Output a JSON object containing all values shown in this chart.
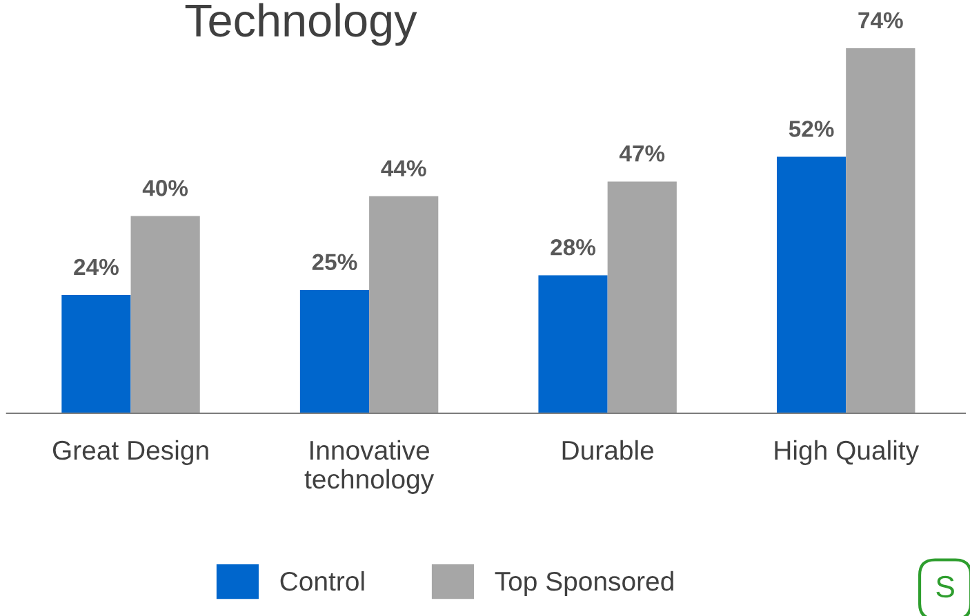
{
  "chart_data": {
    "type": "bar",
    "title": "Technology",
    "categories": [
      "Great Design",
      "Innovative\ntechnology",
      "Durable",
      "High Quality"
    ],
    "series": [
      {
        "name": "Control",
        "color": "#0066cc",
        "values": [
          24,
          25,
          28,
          52
        ],
        "value_labels": [
          "24%",
          "25%",
          "28%",
          "52%"
        ]
      },
      {
        "name": "Top Sponsored",
        "color": "#a6a6a6",
        "values": [
          40,
          44,
          47,
          74
        ],
        "value_labels": [
          "40%",
          "44%",
          "47%",
          "74%"
        ]
      }
    ],
    "tick_labels": "x",
    "grid": false,
    "legend": "bottom",
    "annotations": [
      "S"
    ]
  }
}
